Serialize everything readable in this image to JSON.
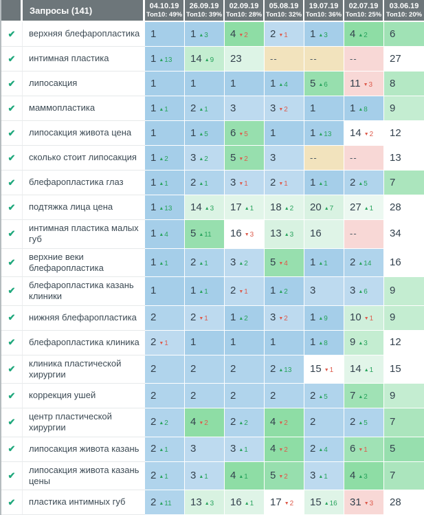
{
  "table": {
    "queries_header": "Запросы (141)",
    "columns": [
      {
        "date": "04.10.19",
        "top10": "Топ10: 49%"
      },
      {
        "date": "26.09.19",
        "top10": "Топ10: 39%"
      },
      {
        "date": "02.09.19",
        "top10": "Топ10: 28%"
      },
      {
        "date": "05.08.19",
        "top10": "Топ10: 32%"
      },
      {
        "date": "19.07.19",
        "top10": "Топ10: 36%"
      },
      {
        "date": "02.07.19",
        "top10": "Топ10: 25%"
      },
      {
        "date": "03.06.19",
        "top10": "Топ10: 20%"
      }
    ],
    "rows": [
      {
        "keyword": "верхняя блефаропластика",
        "cells": [
          {
            "value": "1",
            "bg": "p1"
          },
          {
            "value": "1",
            "delta": 3,
            "dir": "up",
            "bg": "p1"
          },
          {
            "value": "4",
            "delta": 2,
            "dir": "down",
            "bg": "g4"
          },
          {
            "value": "2",
            "delta": 1,
            "dir": "down",
            "bg": "p3"
          },
          {
            "value": "1",
            "delta": 3,
            "dir": "up",
            "bg": "p1"
          },
          {
            "value": "4",
            "delta": 2,
            "dir": "up",
            "bg": "g4"
          },
          {
            "value": "6",
            "bg": "g6"
          }
        ]
      },
      {
        "keyword": "интимная пластика",
        "cells": [
          {
            "value": "1",
            "delta": 13,
            "dir": "up",
            "bg": "p1"
          },
          {
            "value": "14",
            "delta": 9,
            "dir": "up",
            "bg": "g9"
          },
          {
            "value": "23",
            "bg": "t23"
          },
          {
            "value": "--",
            "bg": "amber"
          },
          {
            "value": "--",
            "bg": "amber"
          },
          {
            "value": "--",
            "bg": "pink"
          },
          {
            "value": "27",
            "bg": "white"
          }
        ]
      },
      {
        "keyword": "липосакция",
        "cells": [
          {
            "value": "1",
            "bg": "p1"
          },
          {
            "value": "1",
            "bg": "p1"
          },
          {
            "value": "1",
            "bg": "p1"
          },
          {
            "value": "1",
            "delta": 4,
            "dir": "up",
            "bg": "p1"
          },
          {
            "value": "5",
            "delta": 6,
            "dir": "up",
            "bg": "g5"
          },
          {
            "value": "11",
            "delta": 3,
            "dir": "down",
            "bg": "pink"
          },
          {
            "value": "8",
            "bg": "g8"
          }
        ]
      },
      {
        "keyword": "маммопластика",
        "cells": [
          {
            "value": "1",
            "delta": 1,
            "dir": "up",
            "bg": "p1"
          },
          {
            "value": "2",
            "delta": 1,
            "dir": "up",
            "bg": "p2"
          },
          {
            "value": "3",
            "bg": "p3"
          },
          {
            "value": "3",
            "delta": 2,
            "dir": "down",
            "bg": "p3"
          },
          {
            "value": "1",
            "bg": "p1"
          },
          {
            "value": "1",
            "delta": 8,
            "dir": "up",
            "bg": "p1"
          },
          {
            "value": "9",
            "bg": "g9"
          }
        ]
      },
      {
        "keyword": "липосакция живота цена",
        "cells": [
          {
            "value": "1",
            "bg": "p1"
          },
          {
            "value": "1",
            "delta": 5,
            "dir": "up",
            "bg": "p1"
          },
          {
            "value": "6",
            "delta": 5,
            "dir": "down",
            "bg": "g5"
          },
          {
            "value": "1",
            "bg": "p1"
          },
          {
            "value": "1",
            "delta": 13,
            "dir": "up",
            "bg": "p1"
          },
          {
            "value": "14",
            "delta": 2,
            "dir": "down",
            "bg": "white"
          },
          {
            "value": "12",
            "bg": "white"
          }
        ]
      },
      {
        "keyword": "сколько стоит липосакция",
        "cells": [
          {
            "value": "1",
            "delta": 2,
            "dir": "up",
            "bg": "p1"
          },
          {
            "value": "3",
            "delta": 2,
            "dir": "up",
            "bg": "p3"
          },
          {
            "value": "5",
            "delta": 2,
            "dir": "down",
            "bg": "g5"
          },
          {
            "value": "3",
            "bg": "p3"
          },
          {
            "value": "--",
            "bg": "amber"
          },
          {
            "value": "--",
            "bg": "pink"
          },
          {
            "value": "13",
            "bg": "white"
          }
        ]
      },
      {
        "keyword": "блефаропластика глаз",
        "cells": [
          {
            "value": "1",
            "delta": 1,
            "dir": "up",
            "bg": "p1"
          },
          {
            "value": "2",
            "delta": 1,
            "dir": "up",
            "bg": "p2"
          },
          {
            "value": "3",
            "delta": 1,
            "dir": "down",
            "bg": "p3"
          },
          {
            "value": "2",
            "delta": 1,
            "dir": "down",
            "bg": "p3"
          },
          {
            "value": "1",
            "delta": 1,
            "dir": "up",
            "bg": "p1"
          },
          {
            "value": "2",
            "delta": 5,
            "dir": "up",
            "bg": "p2"
          },
          {
            "value": "7",
            "bg": "g7"
          }
        ]
      },
      {
        "keyword": "подтяжка лица цена",
        "cells": [
          {
            "value": "1",
            "delta": 13,
            "dir": "up",
            "bg": "p1"
          },
          {
            "value": "14",
            "delta": 3,
            "dir": "up",
            "bg": "t14"
          },
          {
            "value": "17",
            "delta": 1,
            "dir": "up",
            "bg": "t17"
          },
          {
            "value": "18",
            "delta": 2,
            "dir": "up",
            "bg": "t17"
          },
          {
            "value": "20",
            "delta": 7,
            "dir": "up",
            "bg": "t20"
          },
          {
            "value": "27",
            "delta": 1,
            "dir": "up",
            "bg": "t27"
          },
          {
            "value": "28",
            "bg": "white"
          }
        ]
      },
      {
        "keyword": "интимная пластика малых губ",
        "cells": [
          {
            "value": "1",
            "delta": 4,
            "dir": "up",
            "bg": "p1"
          },
          {
            "value": "5",
            "delta": 11,
            "dir": "up",
            "bg": "g5"
          },
          {
            "value": "16",
            "delta": 3,
            "dir": "down",
            "bg": "white"
          },
          {
            "value": "13",
            "delta": 3,
            "dir": "up",
            "bg": "t13"
          },
          {
            "value": "16",
            "bg": "t16"
          },
          {
            "value": "--",
            "bg": "pink"
          },
          {
            "value": "34",
            "bg": "white"
          }
        ]
      },
      {
        "keyword": "верхние веки блефаропластика",
        "cells": [
          {
            "value": "1",
            "delta": 1,
            "dir": "up",
            "bg": "p1"
          },
          {
            "value": "2",
            "delta": 1,
            "dir": "up",
            "bg": "p2"
          },
          {
            "value": "3",
            "delta": 2,
            "dir": "up",
            "bg": "p3"
          },
          {
            "value": "5",
            "delta": 4,
            "dir": "down",
            "bg": "g5"
          },
          {
            "value": "1",
            "delta": 1,
            "dir": "up",
            "bg": "p1"
          },
          {
            "value": "2",
            "delta": 14,
            "dir": "up",
            "bg": "p2"
          },
          {
            "value": "16",
            "bg": "white"
          }
        ]
      },
      {
        "keyword": "блефаропластика казань клиники",
        "cells": [
          {
            "value": "1",
            "bg": "p1"
          },
          {
            "value": "1",
            "delta": 1,
            "dir": "up",
            "bg": "p1"
          },
          {
            "value": "2",
            "delta": 1,
            "dir": "down",
            "bg": "p3"
          },
          {
            "value": "1",
            "delta": 2,
            "dir": "up",
            "bg": "p1"
          },
          {
            "value": "3",
            "bg": "p3"
          },
          {
            "value": "3",
            "delta": 6,
            "dir": "up",
            "bg": "p3"
          },
          {
            "value": "9",
            "bg": "g9"
          }
        ]
      },
      {
        "keyword": "нижняя блефаропластика",
        "cells": [
          {
            "value": "2",
            "bg": "p2"
          },
          {
            "value": "2",
            "delta": 1,
            "dir": "down",
            "bg": "p3"
          },
          {
            "value": "1",
            "delta": 2,
            "dir": "up",
            "bg": "p1"
          },
          {
            "value": "3",
            "delta": 2,
            "dir": "down",
            "bg": "p3"
          },
          {
            "value": "1",
            "delta": 9,
            "dir": "up",
            "bg": "p1"
          },
          {
            "value": "10",
            "delta": 1,
            "dir": "down",
            "bg": "g10"
          },
          {
            "value": "9",
            "bg": "g9"
          }
        ]
      },
      {
        "keyword": "блефаропластика клиника",
        "cells": [
          {
            "value": "2",
            "delta": 1,
            "dir": "down",
            "bg": "p3"
          },
          {
            "value": "1",
            "bg": "p1"
          },
          {
            "value": "1",
            "bg": "p1"
          },
          {
            "value": "1",
            "bg": "p1"
          },
          {
            "value": "1",
            "delta": 8,
            "dir": "up",
            "bg": "p1"
          },
          {
            "value": "9",
            "delta": 3,
            "dir": "up",
            "bg": "g9"
          },
          {
            "value": "12",
            "bg": "white"
          }
        ]
      },
      {
        "keyword": "клиника пластической хирургии",
        "cells": [
          {
            "value": "2",
            "bg": "p2"
          },
          {
            "value": "2",
            "bg": "p2"
          },
          {
            "value": "2",
            "bg": "p2"
          },
          {
            "value": "2",
            "delta": 13,
            "dir": "up",
            "bg": "p2"
          },
          {
            "value": "15",
            "delta": 1,
            "dir": "down",
            "bg": "white"
          },
          {
            "value": "14",
            "delta": 1,
            "dir": "up",
            "bg": "t17"
          },
          {
            "value": "15",
            "bg": "white"
          }
        ]
      },
      {
        "keyword": "коррекция ушей",
        "cells": [
          {
            "value": "2",
            "bg": "p2"
          },
          {
            "value": "2",
            "bg": "p2"
          },
          {
            "value": "2",
            "bg": "p2"
          },
          {
            "value": "2",
            "bg": "p2"
          },
          {
            "value": "2",
            "delta": 5,
            "dir": "up",
            "bg": "p2"
          },
          {
            "value": "7",
            "delta": 2,
            "dir": "up",
            "bg": "g6"
          },
          {
            "value": "9",
            "bg": "g9"
          }
        ]
      },
      {
        "keyword": "центр пластической хирургии",
        "cells": [
          {
            "value": "2",
            "delta": 2,
            "dir": "up",
            "bg": "p2"
          },
          {
            "value": "4",
            "delta": 2,
            "dir": "down",
            "bg": "g4"
          },
          {
            "value": "2",
            "delta": 2,
            "dir": "up",
            "bg": "p2"
          },
          {
            "value": "4",
            "delta": 2,
            "dir": "down",
            "bg": "g4"
          },
          {
            "value": "2",
            "bg": "p2"
          },
          {
            "value": "2",
            "delta": 5,
            "dir": "up",
            "bg": "p2"
          },
          {
            "value": "7",
            "bg": "g7"
          }
        ]
      },
      {
        "keyword": "липосакция живота казань",
        "cells": [
          {
            "value": "2",
            "delta": 1,
            "dir": "up",
            "bg": "p2"
          },
          {
            "value": "3",
            "bg": "p3"
          },
          {
            "value": "3",
            "delta": 1,
            "dir": "up",
            "bg": "p3"
          },
          {
            "value": "4",
            "delta": 2,
            "dir": "down",
            "bg": "g4"
          },
          {
            "value": "2",
            "delta": 4,
            "dir": "up",
            "bg": "p2"
          },
          {
            "value": "6",
            "delta": 1,
            "dir": "down",
            "bg": "g6"
          },
          {
            "value": "5",
            "bg": "g5"
          }
        ]
      },
      {
        "keyword": "липосакция живота казань цены",
        "cells": [
          {
            "value": "2",
            "delta": 1,
            "dir": "up",
            "bg": "p2"
          },
          {
            "value": "3",
            "delta": 1,
            "dir": "up",
            "bg": "p3"
          },
          {
            "value": "4",
            "delta": 1,
            "dir": "up",
            "bg": "g4"
          },
          {
            "value": "5",
            "delta": 2,
            "dir": "down",
            "bg": "g5"
          },
          {
            "value": "3",
            "delta": 1,
            "dir": "up",
            "bg": "p3"
          },
          {
            "value": "4",
            "delta": 3,
            "dir": "up",
            "bg": "g4"
          },
          {
            "value": "7",
            "bg": "g7"
          }
        ]
      },
      {
        "keyword": "пластика интимных губ",
        "cells": [
          {
            "value": "2",
            "delta": 11,
            "dir": "up",
            "bg": "p2"
          },
          {
            "value": "13",
            "delta": 3,
            "dir": "up",
            "bg": "t13"
          },
          {
            "value": "16",
            "delta": 1,
            "dir": "up",
            "bg": "t16"
          },
          {
            "value": "17",
            "delta": 2,
            "dir": "down",
            "bg": "white"
          },
          {
            "value": "15",
            "delta": 16,
            "dir": "up",
            "bg": "t16"
          },
          {
            "value": "31",
            "delta": 3,
            "dir": "down",
            "bg": "pink"
          },
          {
            "value": "28",
            "bg": "white"
          }
        ]
      }
    ]
  },
  "palette": {
    "p1": "#a5cee9",
    "p2": "#b0d4ec",
    "p3": "#bddaef",
    "g4": "#8edda5",
    "g5": "#97dfae",
    "g6": "#a0e2b5",
    "g7": "#abe5bd",
    "g8": "#b4e8c4",
    "g9": "#c4edd1",
    "g10": "#cfefdb",
    "t13": "#d8f2e1",
    "t14": "#dbf3e4",
    "t16": "#dff4e7",
    "t17": "#e2f5e9",
    "t20": "#d9f2e2",
    "t23": "#ddf4e6",
    "t27": "#ecf8f1",
    "white": "#ffffff",
    "amber": "#f2e3bd",
    "pink": "#f8d8d6"
  },
  "colors": {
    "header_bg": "#6d767a",
    "header_text": "#ffffff",
    "value_text": "#33414d",
    "keyword_text": "#3c4a54",
    "check_green": "#1fa87c",
    "delta_up": "#27a35c",
    "delta_down": "#dd5a4b"
  },
  "icons": {
    "check": "✔",
    "up": "▲",
    "down": "▼"
  }
}
